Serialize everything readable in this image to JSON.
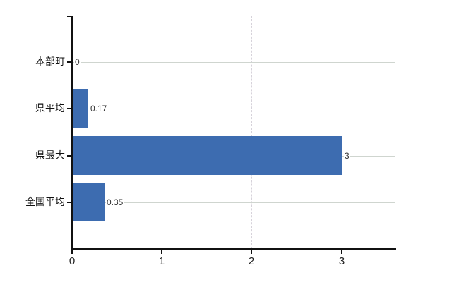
{
  "chart_data": {
    "type": "bar",
    "orientation": "horizontal",
    "title": "",
    "categories": [
      "本部町",
      "県平均",
      "県最大",
      "全国平均"
    ],
    "values": [
      0,
      0.17,
      3,
      0.35
    ],
    "value_labels": [
      "0",
      "0.17",
      "3",
      "0.35"
    ],
    "x_tick_labels": [
      "0",
      "1",
      "2",
      "3"
    ],
    "x_tick_values": [
      0,
      1,
      2,
      3
    ],
    "xlim": [
      0,
      3.6
    ],
    "ylabel": "",
    "xlabel": "",
    "legend": "none",
    "grid": {
      "horizontal": "solid",
      "vertical": "dashed",
      "top_border": "dashed"
    },
    "colors": {
      "bar": "#3d6cb0",
      "axis": "#111111",
      "grid_solid": "#cfd5cf",
      "grid_dashed": "#d6d2da",
      "value_label": "#333333",
      "category_label": "#111111",
      "tick_label": "#222222",
      "background": "#ffffff"
    }
  }
}
